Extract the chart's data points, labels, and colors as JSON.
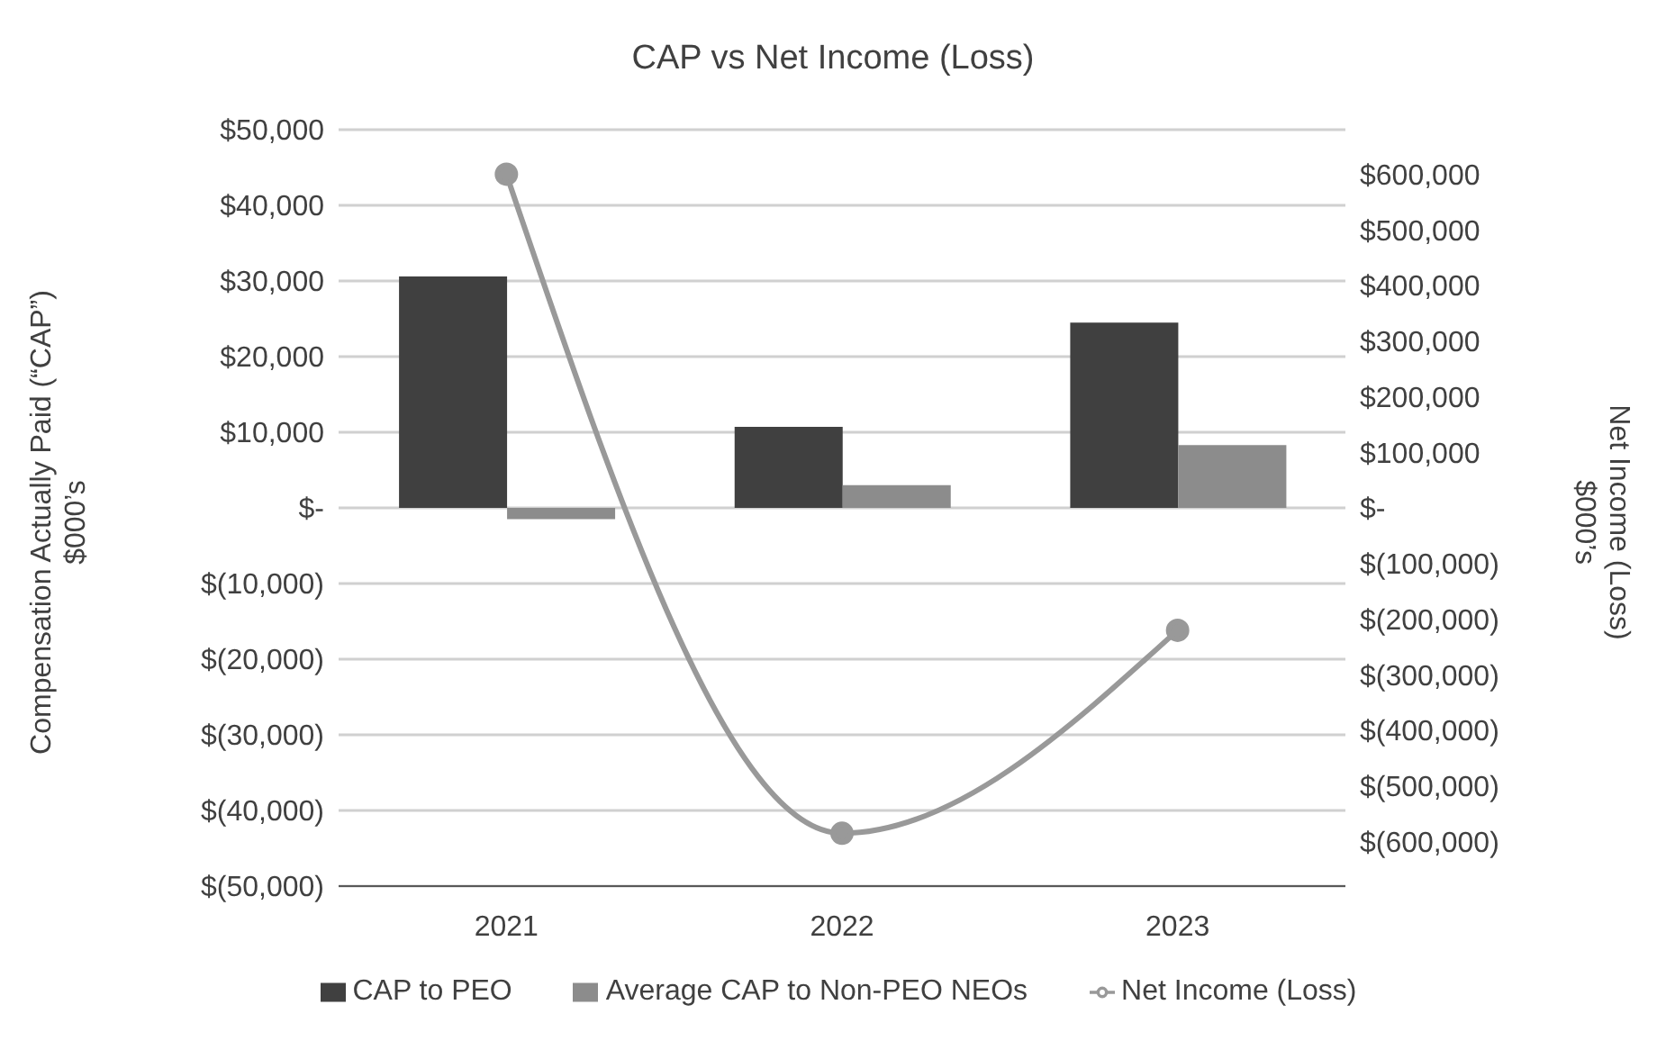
{
  "chart_data": {
    "type": "bar",
    "title": "CAP vs Net Income (Loss)",
    "ylabel": "Compensation Actually Paid (“CAP”)\n$000’s",
    "y2label": "Net Income (Loss)\n$000’s",
    "categories": [
      "2021",
      "2022",
      "2023"
    ],
    "series": [
      {
        "name": "CAP to PEO",
        "color": "#404040",
        "values": [
          30600,
          10700,
          24500
        ]
      },
      {
        "name": "Average CAP to Non-PEO NEOs",
        "color": "#8c8c8c",
        "values": [
          -1500,
          3000,
          8300
        ]
      },
      {
        "name": "Net Income (Loss)",
        "type": "line",
        "axis": "y2",
        "color": "#999999",
        "marker": "circle",
        "values": [
          600000,
          -585000,
          -220000
        ]
      }
    ],
    "ylim": [
      -50000,
      50000
    ],
    "yticks": [
      {
        "value": -50000,
        "label": "$(50,000)"
      },
      {
        "value": -40000,
        "label": "$(40,000)"
      },
      {
        "value": -30000,
        "label": "$(30,000)"
      },
      {
        "value": -20000,
        "label": "$(20,000)"
      },
      {
        "value": -10000,
        "label": "$(10,000)"
      },
      {
        "value": 0,
        "label": "$-"
      },
      {
        "value": 10000,
        "label": "$10,000"
      },
      {
        "value": 20000,
        "label": "$20,000"
      },
      {
        "value": 30000,
        "label": "$30,000"
      },
      {
        "value": 40000,
        "label": "$40,000"
      },
      {
        "value": 50000,
        "label": "$50,000"
      }
    ],
    "y2lim": [
      -680000,
      680000
    ],
    "y2ticks": [
      {
        "value": -600000,
        "label": "$(600,000)"
      },
      {
        "value": -500000,
        "label": "$(500,000)"
      },
      {
        "value": -400000,
        "label": "$(400,000)"
      },
      {
        "value": -300000,
        "label": "$(300,000)"
      },
      {
        "value": -200000,
        "label": "$(200,000)"
      },
      {
        "value": -100000,
        "label": "$(100,000)"
      },
      {
        "value": 0,
        "label": "$-"
      },
      {
        "value": 100000,
        "label": "$100,000"
      },
      {
        "value": 200000,
        "label": "$200,000"
      },
      {
        "value": 300000,
        "label": "$300,000"
      },
      {
        "value": 400000,
        "label": "$400,000"
      },
      {
        "value": 500000,
        "label": "$500,000"
      },
      {
        "value": 600000,
        "label": "$600,000"
      }
    ],
    "grid": "y",
    "legend": "bottom"
  }
}
